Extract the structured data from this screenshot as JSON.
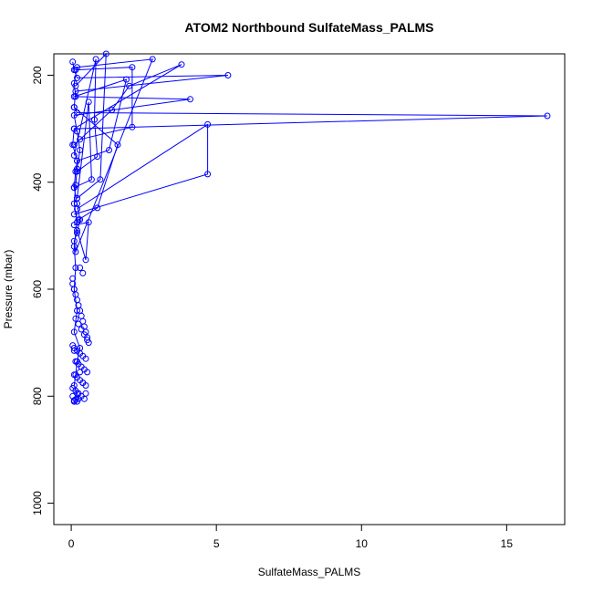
{
  "chart_data": {
    "type": "line",
    "title": "ATOM2 Northbound SulfateMass_PALMS",
    "xlabel": "SulfateMass_PALMS",
    "ylabel": "Pressure (mbar)",
    "xlim": [
      -0.6,
      17.0
    ],
    "ylim": [
      1040,
      160
    ],
    "y_reversed": true,
    "x_ticks": [
      "0",
      "5",
      "10",
      "15"
    ],
    "y_ticks": [
      "200",
      "400",
      "600",
      "800",
      "1000"
    ],
    "grid": false,
    "legend": "none",
    "color": "#0000ff",
    "marker": "open-circle",
    "x": [
      0.05,
      0.1,
      0.2,
      5.4,
      0.15,
      0.1,
      0.2,
      16.4,
      0.1,
      0.05,
      0.2,
      0.15,
      0.1,
      0.2,
      0.3,
      0.2,
      0.1,
      0.15,
      2.8,
      0.2,
      0.1,
      0.15,
      4.1,
      0.1,
      0.2,
      0.3,
      0.2,
      0.15,
      0.1,
      0.2,
      0.1,
      0.15,
      0.1,
      0.2,
      0.1,
      0.3,
      0.2,
      0.15,
      0.1,
      0.2,
      0.25,
      0.1
    ],
    "y": [
      175,
      190,
      205,
      200,
      230,
      260,
      270,
      276,
      300,
      330,
      360,
      380,
      410,
      440,
      470,
      495,
      510,
      530,
      170,
      185,
      215,
      240,
      245,
      275,
      305,
      340,
      375,
      405,
      440,
      475,
      520,
      560,
      600,
      640,
      680,
      710,
      735,
      760,
      780,
      795,
      805,
      810
    ],
    "extra_segments": [
      {
        "x": [
          0.1,
          3.8,
          2.0,
          1.4,
          0.1
        ],
        "y": [
          300,
          180,
          220,
          265,
          330
        ]
      },
      {
        "x": [
          0.2,
          4.7,
          4.7,
          0.1
        ],
        "y": [
          450,
          292,
          385,
          460
        ]
      },
      {
        "x": [
          0.15,
          2.1,
          2.1,
          0.3
        ],
        "y": [
          190,
          185,
          297,
          320
        ]
      },
      {
        "x": [
          0.1,
          1.9,
          1.3,
          0.2
        ],
        "y": [
          240,
          208,
          340,
          360
        ]
      },
      {
        "x": [
          0.1,
          0.85,
          0.8,
          0.9,
          0.2
        ],
        "y": [
          350,
          170,
          283,
          352,
          380
        ]
      },
      {
        "x": [
          0.2,
          0.6,
          0.7,
          0.1
        ],
        "y": [
          430,
          250,
          395,
          410
        ]
      },
      {
        "x": [
          0.15,
          1.2,
          1.0,
          0.2
        ],
        "y": [
          220,
          160,
          395,
          430
        ]
      },
      {
        "x": [
          0.1,
          0.6,
          0.5,
          0.2
        ],
        "y": [
          480,
          475,
          545,
          490
        ]
      },
      {
        "x": [
          0.1,
          1.6,
          0.9,
          0.25
        ],
        "y": [
          260,
          330,
          448,
          470
        ]
      }
    ],
    "scatter_cluster": {
      "x": [
        0.05,
        0.1,
        0.15,
        0.2,
        0.25,
        0.3,
        0.35,
        0.4,
        0.45,
        0.5,
        0.55,
        0.6,
        0.05,
        0.1,
        0.2,
        0.3,
        0.4,
        0.5,
        0.15,
        0.25,
        0.35,
        0.45,
        0.55,
        0.1,
        0.2,
        0.3,
        0.4,
        0.5,
        0.05,
        0.15,
        0.25,
        0.35,
        0.45,
        0.1,
        0.2,
        0.3,
        0.4,
        0.05,
        0.15,
        0.25,
        0.35,
        0.45,
        0.55,
        0.1,
        0.2,
        0.3,
        0.4,
        0.5,
        0.05,
        0.15
      ],
      "y": [
        590,
        600,
        610,
        620,
        630,
        640,
        650,
        660,
        670,
        680,
        690,
        700,
        705,
        710,
        715,
        720,
        725,
        730,
        735,
        740,
        745,
        750,
        755,
        760,
        765,
        770,
        775,
        780,
        785,
        790,
        795,
        800,
        805,
        808,
        810,
        560,
        570,
        580,
        655,
        665,
        675,
        685,
        695,
        715,
        735,
        755,
        775,
        795,
        800,
        806
      ]
    }
  }
}
